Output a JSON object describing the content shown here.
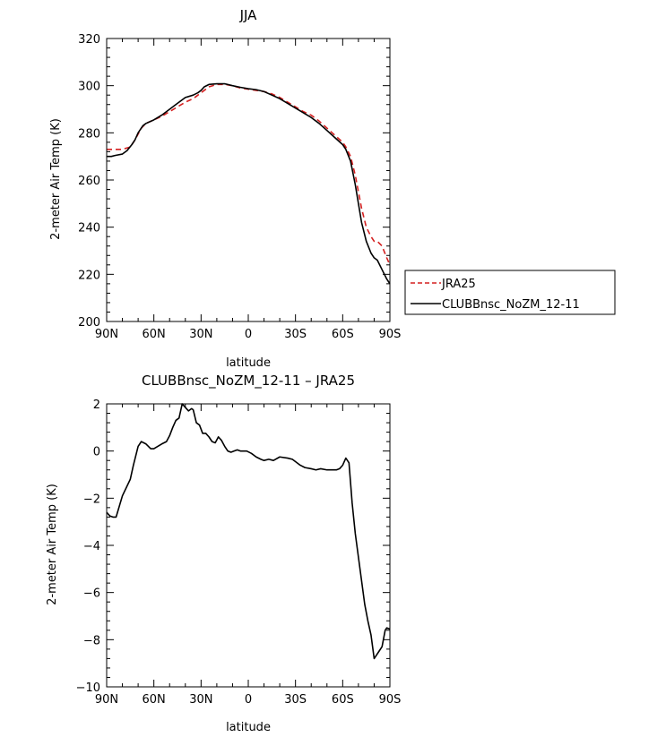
{
  "chart_data": [
    {
      "type": "line",
      "title": "JJA",
      "xlabel": "latitude",
      "ylabel": "2-meter Air Temp (K)",
      "xlim": [
        90,
        -90
      ],
      "ylim": [
        200,
        320
      ],
      "x_ticks": [
        90,
        60,
        30,
        0,
        -30,
        -60,
        -90
      ],
      "x_tick_labels": [
        "90N",
        "60N",
        "30N",
        "0",
        "30S",
        "60S",
        "90S"
      ],
      "y_ticks": [
        200,
        220,
        240,
        260,
        280,
        300,
        320
      ],
      "y_tick_labels": [
        "200",
        "220",
        "240",
        "260",
        "280",
        "300",
        "320"
      ],
      "legend_position": "right, outside plot",
      "series": [
        {
          "name": "JRA25",
          "color": "#d42020",
          "dash": "dashed",
          "x": [
            90,
            85,
            80,
            75,
            72,
            68,
            65,
            60,
            55,
            50,
            45,
            40,
            35,
            30,
            25,
            20,
            15,
            10,
            5,
            0,
            -5,
            -10,
            -15,
            -20,
            -25,
            -30,
            -35,
            -40,
            -45,
            -50,
            -55,
            -60,
            -62,
            -65,
            -68,
            -70,
            -72,
            -75,
            -78,
            -80,
            -82,
            -85,
            -88,
            -90
          ],
          "y": [
            273,
            273,
            273,
            274,
            277,
            282,
            284,
            285.5,
            287,
            289,
            291,
            293,
            294.5,
            297,
            299.5,
            300.5,
            300.5,
            300,
            299,
            298.5,
            298,
            297.5,
            296.5,
            295,
            293,
            291,
            289,
            287.5,
            285,
            282,
            279,
            276,
            274,
            270,
            262,
            255,
            248,
            240,
            236,
            234,
            234,
            232,
            227,
            224
          ]
        },
        {
          "name": "CLUBBnsc_NoZM_12-11",
          "color": "#000000",
          "dash": "solid",
          "x": [
            90,
            87,
            84,
            80,
            77,
            74,
            72,
            70,
            67,
            65,
            60,
            55,
            50,
            45,
            40,
            35,
            32,
            30,
            28,
            25,
            20,
            15,
            10,
            5,
            0,
            -5,
            -10,
            -15,
            -20,
            -25,
            -30,
            -35,
            -40,
            -45,
            -50,
            -55,
            -60,
            -62,
            -65,
            -68,
            -70,
            -72,
            -75,
            -78,
            -80,
            -82,
            -85,
            -88,
            -90
          ],
          "y": [
            270,
            270,
            270.5,
            271,
            272.5,
            275,
            277,
            280,
            283,
            284,
            285.5,
            287.5,
            290,
            292.5,
            295,
            296,
            297,
            298,
            299.5,
            300.5,
            300.8,
            300.8,
            300,
            299.3,
            298.7,
            298.3,
            297.5,
            296,
            294.5,
            292.5,
            290.5,
            288.5,
            286.5,
            284,
            281,
            278,
            275,
            273,
            268,
            258,
            250,
            242,
            234,
            229,
            227,
            226,
            222,
            218,
            216
          ]
        }
      ]
    },
    {
      "type": "line",
      "title": "CLUBBnsc_NoZM_12-11  –  JRA25",
      "xlabel": "latitude",
      "ylabel": "2-meter Air Temp (K)",
      "xlim": [
        90,
        -90
      ],
      "ylim": [
        -10,
        2
      ],
      "x_ticks": [
        90,
        60,
        30,
        0,
        -30,
        -60,
        -90
      ],
      "x_tick_labels": [
        "90N",
        "60N",
        "30N",
        "0",
        "30S",
        "60S",
        "90S"
      ],
      "y_ticks": [
        -10,
        -8,
        -6,
        -4,
        -2,
        0,
        2
      ],
      "y_tick_labels": [
        "−10",
        "−8",
        "−6",
        "−4",
        "−2",
        "0",
        "2"
      ],
      "series": [
        {
          "color": "#000000",
          "dash": "solid",
          "x": [
            90,
            88,
            86,
            84,
            80,
            75,
            73,
            70,
            68,
            65,
            62,
            60,
            55,
            52,
            50,
            48,
            46,
            44,
            42,
            40,
            38,
            36,
            35,
            33,
            31,
            29,
            27,
            25,
            23,
            21,
            19,
            17,
            15,
            13,
            11,
            9,
            7,
            5,
            3,
            1,
            -2,
            -5,
            -8,
            -10,
            -13,
            -16,
            -20,
            -25,
            -28,
            -30,
            -33,
            -36,
            -40,
            -43,
            -46,
            -50,
            -53,
            -56,
            -58,
            -60,
            -62,
            -64,
            -66,
            -68,
            -70,
            -72,
            -74,
            -76,
            -78,
            -80,
            -81,
            -83,
            -85,
            -87,
            -88,
            -90
          ],
          "y": [
            -2.6,
            -2.75,
            -2.8,
            -2.8,
            -1.9,
            -1.2,
            -0.6,
            0.2,
            0.4,
            0.3,
            0.1,
            0.1,
            0.3,
            0.4,
            0.65,
            1.0,
            1.3,
            1.4,
            2.0,
            1.85,
            1.7,
            1.8,
            1.75,
            1.2,
            1.1,
            0.75,
            0.75,
            0.6,
            0.4,
            0.35,
            0.6,
            0.45,
            0.2,
            0.0,
            -0.05,
            0.0,
            0.05,
            0.0,
            0.0,
            0.0,
            -0.1,
            -0.25,
            -0.35,
            -0.4,
            -0.35,
            -0.4,
            -0.25,
            -0.3,
            -0.35,
            -0.45,
            -0.6,
            -0.7,
            -0.75,
            -0.8,
            -0.75,
            -0.8,
            -0.8,
            -0.8,
            -0.75,
            -0.6,
            -0.3,
            -0.5,
            -2.2,
            -3.5,
            -4.5,
            -5.5,
            -6.5,
            -7.2,
            -7.8,
            -8.8,
            -8.7,
            -8.5,
            -8.3,
            -7.6,
            -7.5,
            -7.55
          ]
        }
      ]
    }
  ]
}
